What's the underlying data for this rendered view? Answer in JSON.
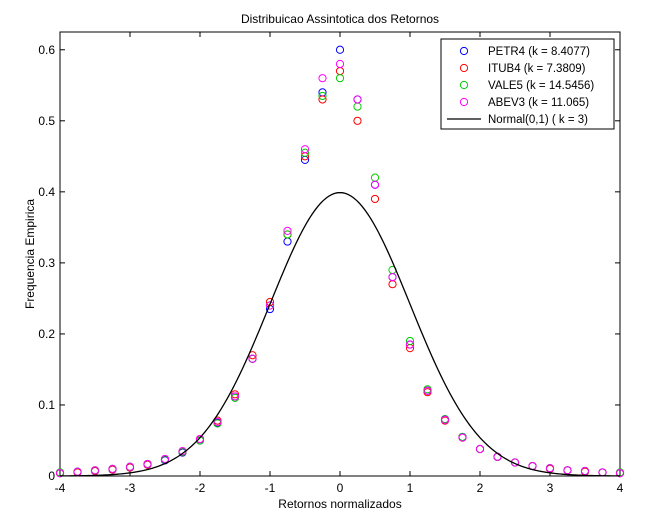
{
  "chart_data": {
    "type": "scatter",
    "title": "Distribuicao Assintotica dos Retornos",
    "xlabel": "Retornos normalizados",
    "ylabel": "Frequencia Empirica",
    "xlim": [
      -4,
      4
    ],
    "ylim": [
      0,
      0.6
    ],
    "x_ticks": [
      "-4",
      "-3",
      "-2",
      "-1",
      "0",
      "1",
      "2",
      "3",
      "4"
    ],
    "y_ticks": [
      "0",
      "0.1",
      "0.2",
      "0.3",
      "0.4",
      "0.5",
      "0.6"
    ],
    "grid": false,
    "legend_position": "top-right",
    "series": [
      {
        "name": "PETR4 (k = 8.4077)",
        "color": "#0000ff",
        "marker": "circle",
        "kurtosis": 8.4077
      },
      {
        "name": "ITUB4 (k = 7.3809)",
        "color": "#ff0000",
        "marker": "circle",
        "kurtosis": 7.3809
      },
      {
        "name": "VALE5 (k = 14.5456)",
        "color": "#00cc00",
        "marker": "circle",
        "kurtosis": 14.5456
      },
      {
        "name": "ABEV3 (k = 11.065)",
        "color": "#ff00ff",
        "marker": "circle",
        "kurtosis": 11.065
      },
      {
        "name": "Normal(0,1) ( k = 3)",
        "color": "#000000",
        "marker": "line",
        "kurtosis": 3
      }
    ],
    "x": [
      -4.0,
      -3.75,
      -3.5,
      -3.25,
      -3.0,
      -2.75,
      -2.5,
      -2.25,
      -2.0,
      -1.75,
      -1.5,
      -1.25,
      -1.0,
      -0.75,
      -0.5,
      -0.25,
      0.0,
      0.25,
      0.5,
      0.75,
      1.0,
      1.25,
      1.5,
      1.75,
      2.0,
      2.25,
      2.5,
      2.75,
      3.0,
      3.25,
      3.5,
      3.75,
      4.0
    ],
    "empirical_values": {
      "PETR4": [
        0.004,
        0.006,
        0.007,
        0.009,
        0.012,
        0.016,
        0.022,
        0.033,
        0.05,
        0.075,
        0.112,
        0.165,
        0.235,
        0.33,
        0.445,
        0.54,
        0.6,
        0.53,
        0.41,
        0.28,
        0.185,
        0.12,
        0.08,
        0.055,
        0.038,
        0.027,
        0.019,
        0.014,
        0.011,
        0.008,
        0.007,
        0.005,
        0.004
      ],
      "ITUB4": [
        0.004,
        0.005,
        0.007,
        0.009,
        0.012,
        0.016,
        0.023,
        0.034,
        0.052,
        0.078,
        0.115,
        0.17,
        0.245,
        0.34,
        0.45,
        0.53,
        0.57,
        0.5,
        0.39,
        0.27,
        0.18,
        0.118,
        0.078,
        0.054,
        0.038,
        0.027,
        0.019,
        0.014,
        0.01,
        0.008,
        0.006,
        0.005,
        0.004
      ],
      "VALE5": [
        0.005,
        0.006,
        0.008,
        0.01,
        0.013,
        0.017,
        0.023,
        0.034,
        0.05,
        0.074,
        0.11,
        0.165,
        0.24,
        0.34,
        0.455,
        0.535,
        0.56,
        0.52,
        0.42,
        0.29,
        0.19,
        0.122,
        0.08,
        0.055,
        0.038,
        0.027,
        0.019,
        0.014,
        0.011,
        0.008,
        0.007,
        0.005,
        0.005
      ],
      "ABEV3": [
        0.004,
        0.006,
        0.008,
        0.01,
        0.013,
        0.017,
        0.024,
        0.035,
        0.052,
        0.076,
        0.112,
        0.165,
        0.24,
        0.345,
        0.46,
        0.56,
        0.58,
        0.53,
        0.41,
        0.28,
        0.185,
        0.12,
        0.079,
        0.054,
        0.038,
        0.027,
        0.019,
        0.014,
        0.011,
        0.008,
        0.007,
        0.005,
        0.004
      ]
    }
  }
}
